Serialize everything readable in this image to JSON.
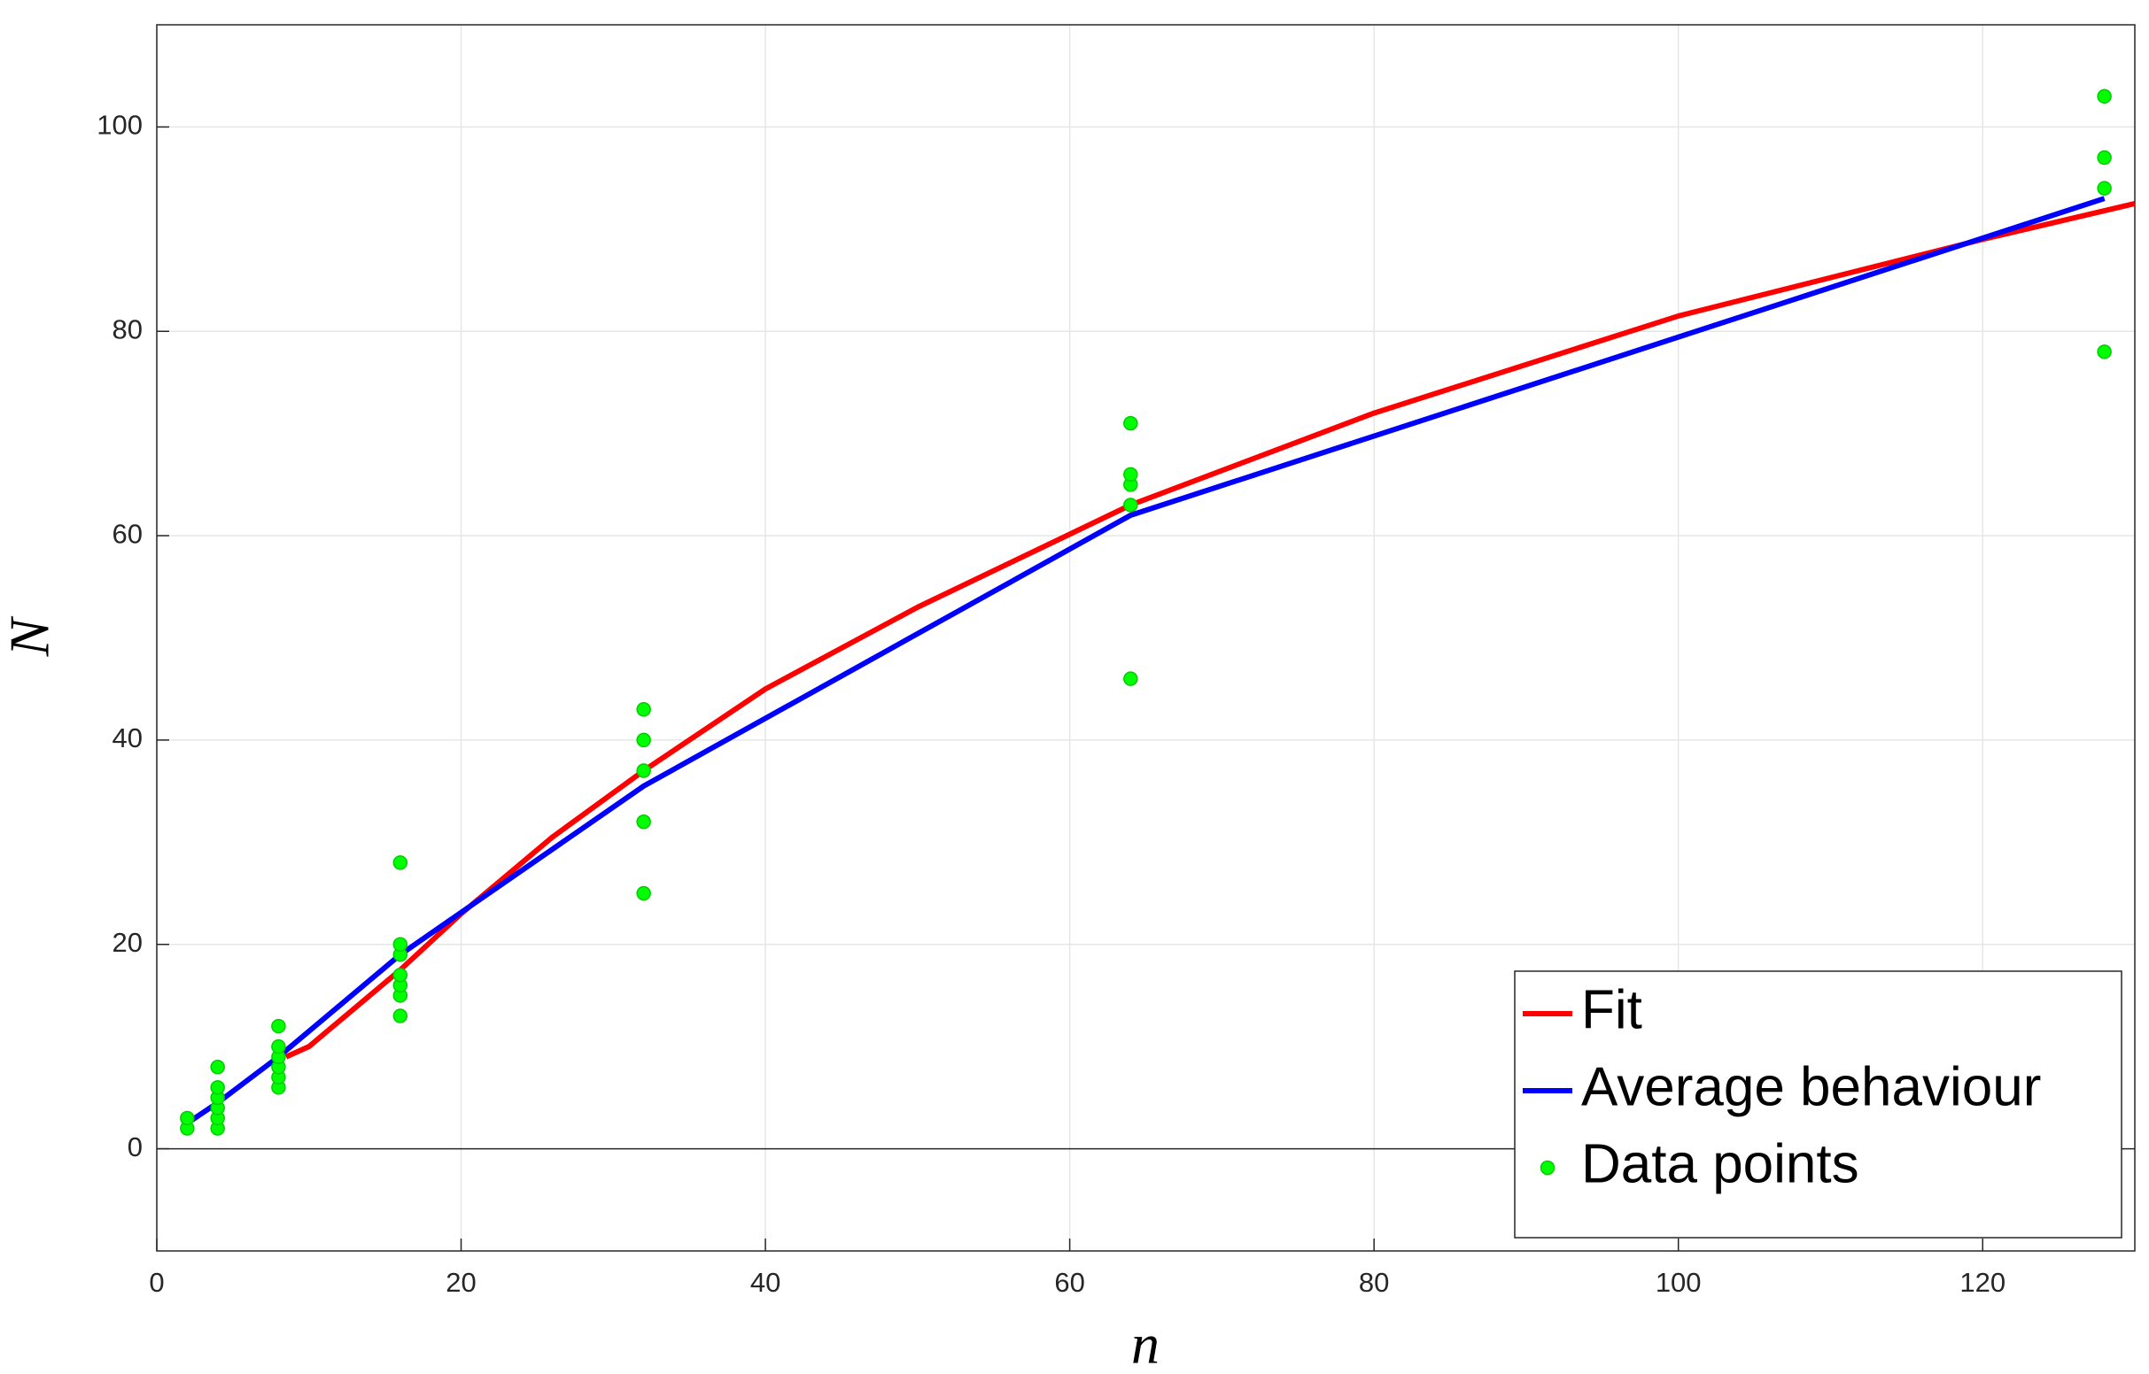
{
  "chart_data": {
    "type": "line",
    "x_label": "n",
    "y_label": "N",
    "xlim": [
      0,
      130
    ],
    "ylim": [
      -10,
      110
    ],
    "xticks": [
      0,
      20,
      40,
      60,
      80,
      100,
      120
    ],
    "yticks": [
      0,
      20,
      40,
      60,
      80,
      100
    ],
    "grid": true,
    "legend": "lower right",
    "series": [
      {
        "name": "Fit",
        "type": "line",
        "color": "#ff0000",
        "x": [
          8.5,
          10,
          12,
          16,
          20,
          26,
          32,
          40,
          50,
          64,
          80,
          100,
          120,
          130
        ],
        "values": [
          9,
          10,
          12.5,
          17.5,
          23,
          30.5,
          37,
          45,
          53,
          63,
          72,
          81.5,
          89,
          92.5
        ]
      },
      {
        "name": "Average behaviour",
        "type": "line",
        "color": "#0000ff",
        "x": [
          2,
          4,
          8,
          16,
          32,
          64,
          128
        ],
        "values": [
          2.5,
          4.5,
          9,
          19,
          35.5,
          62,
          93
        ]
      },
      {
        "name": "Data points",
        "type": "scatter",
        "color": "#00ff00",
        "x": [
          2,
          2,
          4,
          4,
          4,
          4,
          4,
          4,
          8,
          8,
          8,
          8,
          8,
          8,
          16,
          16,
          16,
          16,
          16,
          16,
          16,
          32,
          32,
          32,
          32,
          32,
          64,
          64,
          64,
          64,
          64,
          128,
          128,
          128,
          128
        ],
        "values": [
          2,
          3,
          2,
          3,
          4,
          5,
          6,
          8,
          6,
          7,
          8,
          9,
          10,
          12,
          13,
          15,
          16,
          17,
          19,
          20,
          28,
          25,
          32,
          37,
          40,
          43,
          46,
          63,
          65,
          66,
          71,
          78,
          94,
          97,
          103
        ]
      }
    ]
  }
}
